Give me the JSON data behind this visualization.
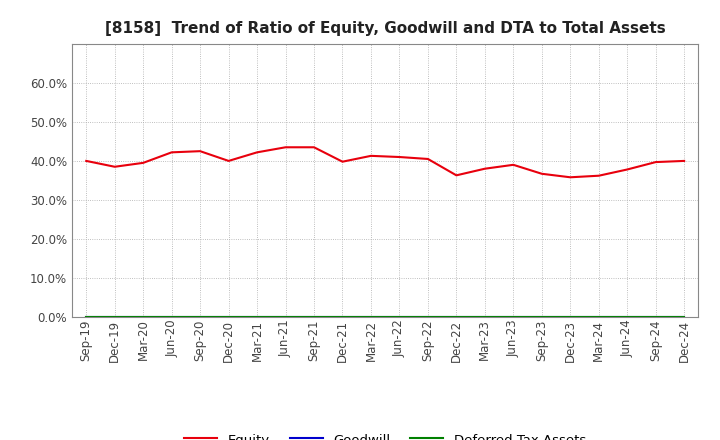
{
  "title": "[8158]  Trend of Ratio of Equity, Goodwill and DTA to Total Assets",
  "x_labels": [
    "Sep-19",
    "Dec-19",
    "Mar-20",
    "Jun-20",
    "Sep-20",
    "Dec-20",
    "Mar-21",
    "Jun-21",
    "Sep-21",
    "Dec-21",
    "Mar-22",
    "Jun-22",
    "Sep-22",
    "Dec-22",
    "Mar-23",
    "Jun-23",
    "Sep-23",
    "Dec-23",
    "Mar-24",
    "Jun-24",
    "Sep-24",
    "Dec-24"
  ],
  "equity": [
    0.4,
    0.385,
    0.395,
    0.422,
    0.425,
    0.4,
    0.422,
    0.435,
    0.435,
    0.398,
    0.413,
    0.41,
    0.405,
    0.363,
    0.38,
    0.39,
    0.367,
    0.358,
    0.362,
    0.378,
    0.397,
    0.4
  ],
  "goodwill": [
    0,
    0,
    0,
    0,
    0,
    0,
    0,
    0,
    0,
    0,
    0,
    0,
    0,
    0,
    0,
    0,
    0,
    0,
    0,
    0,
    0,
    0
  ],
  "dta": [
    0,
    0,
    0,
    0,
    0,
    0,
    0,
    0,
    0,
    0,
    0,
    0,
    0,
    0,
    0,
    0,
    0,
    0,
    0,
    0,
    0,
    0
  ],
  "equity_color": "#e8000d",
  "goodwill_color": "#0000cd",
  "dta_color": "#008000",
  "ylim": [
    0.0,
    0.7
  ],
  "yticks": [
    0.0,
    0.1,
    0.2,
    0.3,
    0.4,
    0.5,
    0.6
  ],
  "background_color": "#ffffff",
  "grid_color": "#aaaaaa",
  "title_fontsize": 11,
  "tick_fontsize": 8.5,
  "legend_fontsize": 9.5
}
